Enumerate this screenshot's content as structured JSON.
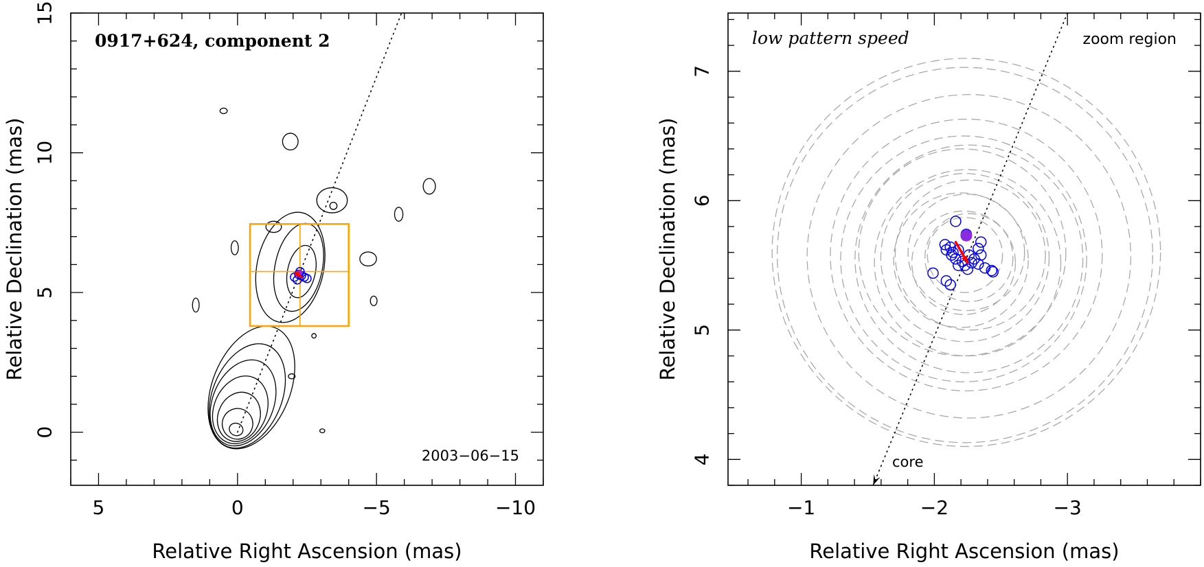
{
  "colors": {
    "zoom_box": "#FFA500",
    "epoch_markers": "#0000EE",
    "motion_arrow": "#FF0000",
    "filled_marker": "#8A2BE2",
    "uncertainty_rings": "#A9A9A9",
    "jet_axis": "#000000"
  },
  "chart_data": [
    {
      "type": "scatter",
      "panel": "left",
      "title": "0917+624, component 2",
      "date_label": "2003−06−15",
      "xlabel": "Relative Right Ascension (mas)",
      "ylabel": "Relative Declination (mas)",
      "xlim": [
        6,
        -11
      ],
      "ylim": [
        -1.9,
        15
      ],
      "xticks_major": [
        {
          "value": 5,
          "label": "5"
        },
        {
          "value": 0,
          "label": "0"
        },
        {
          "value": -5,
          "label": "−5"
        },
        {
          "value": -10,
          "label": "−10"
        }
      ],
      "yticks_major": [
        {
          "value": 0,
          "label": "0"
        },
        {
          "value": 5,
          "label": "5"
        },
        {
          "value": 10,
          "label": "10"
        },
        {
          "value": 15,
          "label": "15"
        }
      ],
      "minor_tick_step": 1,
      "legend": "none",
      "jet_axis": {
        "from": [
          0,
          0
        ],
        "to": [
          -5.9,
          15
        ]
      },
      "zoom_box": {
        "x_range": [
          -0.45,
          -4.0
        ],
        "y_range": [
          3.8,
          7.45
        ],
        "center": [
          -2.25,
          5.75
        ]
      },
      "core_peak": [
        0.05,
        0.1
      ],
      "core_contours": [
        {
          "center": [
            0.05,
            0.1
          ],
          "rx": 0.25,
          "ry": 0.22
        },
        {
          "center": [
            0.0,
            0.3
          ],
          "rx": 0.55,
          "ry": 0.55
        },
        {
          "center": [
            -0.05,
            0.55
          ],
          "rx": 0.75,
          "ry": 0.9
        },
        {
          "center": [
            -0.1,
            0.8
          ],
          "rx": 0.95,
          "ry": 1.25
        },
        {
          "center": [
            -0.2,
            1.05
          ],
          "rx": 1.1,
          "ry": 1.6
        },
        {
          "center": [
            -0.35,
            1.3
          ],
          "rx": 1.25,
          "ry": 1.95
        },
        {
          "center": [
            -0.5,
            1.6
          ],
          "rx": 1.4,
          "ry": 2.3
        }
      ],
      "isolated_blobs": [
        {
          "center": [
            0.5,
            11.5
          ],
          "rx": 0.13,
          "ry": 0.1
        },
        {
          "center": [
            -1.9,
            10.4
          ],
          "rx": 0.28,
          "ry": 0.3
        },
        {
          "center": [
            -6.9,
            8.8
          ],
          "rx": 0.22,
          "ry": 0.28
        },
        {
          "center": [
            -5.8,
            7.8
          ],
          "rx": 0.15,
          "ry": 0.25
        },
        {
          "center": [
            -3.4,
            8.3
          ],
          "rx": 0.55,
          "ry": 0.45
        },
        {
          "center": [
            -3.45,
            8.1
          ],
          "rx": 0.13,
          "ry": 0.13
        },
        {
          "center": [
            -1.3,
            7.35
          ],
          "rx": 0.28,
          "ry": 0.2
        },
        {
          "center": [
            0.1,
            6.6
          ],
          "rx": 0.13,
          "ry": 0.25
        },
        {
          "center": [
            -4.7,
            6.2
          ],
          "rx": 0.3,
          "ry": 0.25
        },
        {
          "center": [
            -4.9,
            4.7
          ],
          "rx": 0.12,
          "ry": 0.17
        },
        {
          "center": [
            1.5,
            4.55
          ],
          "rx": 0.12,
          "ry": 0.25
        },
        {
          "center": [
            -2.75,
            3.45
          ],
          "rx": 0.08,
          "ry": 0.08
        },
        {
          "center": [
            -1.95,
            2.0
          ],
          "rx": 0.12,
          "ry": 0.09
        },
        {
          "center": [
            -3.05,
            0.05
          ],
          "rx": 0.09,
          "ry": 0.07
        }
      ],
      "component_contours": [
        {
          "center": [
            -1.9,
            5.9
          ],
          "rx": 1.2,
          "ry": 2.0
        },
        {
          "center": [
            -2.2,
            5.9
          ],
          "rx": 0.85,
          "ry": 1.6
        },
        {
          "center": [
            -2.3,
            5.75
          ],
          "rx": 0.5,
          "ry": 0.95
        }
      ],
      "epoch_positions": [
        [
          -2.05,
          5.55
        ],
        [
          -2.25,
          5.75
        ],
        [
          -2.4,
          5.55
        ],
        [
          -2.15,
          5.45
        ],
        [
          -2.3,
          5.6
        ],
        [
          -2.5,
          5.5
        ],
        [
          -2.2,
          5.65
        ]
      ],
      "filled_marker": [
        -2.25,
        5.72
      ],
      "motion_arrow": {
        "from": [
          -2.1,
          5.7
        ],
        "to": [
          -2.3,
          5.55
        ]
      }
    },
    {
      "type": "scatter",
      "panel": "right",
      "title": "low pattern speed",
      "region_label": "zoom region",
      "core_label": "core",
      "xlabel": "Relative Right Ascension (mas)",
      "ylabel": "Relative Declination (mas)",
      "xlim": [
        -0.45,
        -4.0
      ],
      "ylim": [
        3.8,
        7.45
      ],
      "xticks_major": [
        {
          "value": -1,
          "label": "−1"
        },
        {
          "value": -2,
          "label": "−2"
        },
        {
          "value": -3,
          "label": "−3"
        }
      ],
      "yticks_major": [
        {
          "value": 4,
          "label": "4"
        },
        {
          "value": 5,
          "label": "5"
        },
        {
          "value": 6,
          "label": "6"
        },
        {
          "value": 7,
          "label": "7"
        }
      ],
      "minor_tick_step": 0.2,
      "legend": "none",
      "jet_axis": {
        "from": [
          -3.0,
          7.45
        ],
        "to": [
          -1.54,
          3.8
        ]
      },
      "core_arrow_tip": [
        -1.54,
        3.8
      ],
      "epoch_positions": [
        [
          -2.16,
          5.84
        ],
        [
          -2.24,
          5.74
        ],
        [
          -2.35,
          5.68
        ],
        [
          -2.33,
          5.63
        ],
        [
          -2.08,
          5.66
        ],
        [
          -2.09,
          5.62
        ],
        [
          -2.12,
          5.64
        ],
        [
          -2.14,
          5.6
        ],
        [
          -2.13,
          5.58
        ],
        [
          -2.16,
          5.55
        ],
        [
          -2.18,
          5.5
        ],
        [
          -2.21,
          5.53
        ],
        [
          -2.23,
          5.5
        ],
        [
          -2.26,
          5.58
        ],
        [
          -2.28,
          5.52
        ],
        [
          -2.3,
          5.55
        ],
        [
          -2.25,
          5.47
        ],
        [
          -2.33,
          5.51
        ],
        [
          -2.38,
          5.48
        ],
        [
          -2.43,
          5.46
        ],
        [
          -2.44,
          5.45
        ],
        [
          -1.99,
          5.44
        ],
        [
          -2.09,
          5.38
        ],
        [
          -2.12,
          5.35
        ],
        [
          -2.18,
          5.62
        ],
        [
          -2.35,
          5.58
        ]
      ],
      "filled_marker": [
        -2.24,
        5.73
      ],
      "motion_arrow": {
        "from": [
          -2.16,
          5.68
        ],
        "to": [
          -2.25,
          5.52
        ]
      },
      "uncertainty_rings": [
        {
          "center": [
            -2.24,
            5.6
          ],
          "r": 1.5
        },
        {
          "center": [
            -2.23,
            5.58
          ],
          "r": 1.45
        },
        {
          "center": [
            -2.26,
            5.57
          ],
          "r": 1.25
        },
        {
          "center": [
            -2.24,
            5.58
          ],
          "r": 1.05
        },
        {
          "center": [
            -2.22,
            5.55
          ],
          "r": 0.95
        },
        {
          "center": [
            -2.26,
            5.55
          ],
          "r": 0.88
        },
        {
          "center": [
            -2.21,
            5.6
          ],
          "r": 0.8
        },
        {
          "center": [
            -2.25,
            5.52
          ],
          "r": 0.72
        },
        {
          "center": [
            -2.23,
            5.56
          ],
          "r": 0.65
        },
        {
          "center": [
            -2.27,
            5.58
          ],
          "r": 0.58
        },
        {
          "center": [
            -2.2,
            5.54
          ],
          "r": 0.52
        },
        {
          "center": [
            -2.24,
            5.6
          ],
          "r": 0.45
        },
        {
          "center": [
            -2.22,
            5.52
          ],
          "r": 0.4
        },
        {
          "center": [
            -2.26,
            5.56
          ],
          "r": 0.34
        },
        {
          "center": [
            -2.23,
            5.58
          ],
          "r": 0.29
        }
      ]
    }
  ]
}
